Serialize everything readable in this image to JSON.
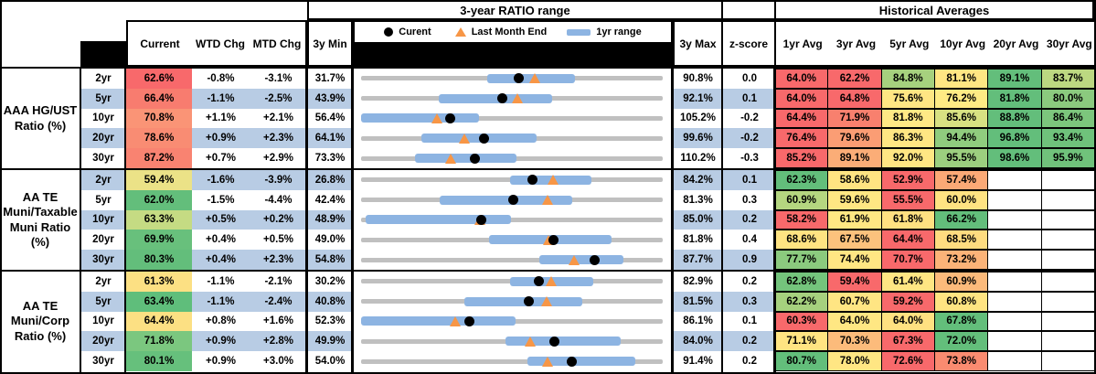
{
  "header": {
    "ratio_range_title": "3-year RATIO range",
    "historical_title": "Historical Averages",
    "legend": {
      "current": "Curent",
      "last_month_end": "Last Month End",
      "range_1yr": "1yr range"
    },
    "col_current": "Current",
    "col_wtd": "WTD Chg",
    "col_mtd": "MTD Chg",
    "col_3ymin": "3y Min",
    "col_3ymax": "3y Max",
    "col_zscore": "z-score",
    "avg_cols": [
      "1yr Avg",
      "3yr Avg",
      "5yr Avg",
      "10yr Avg",
      "20yr Avg",
      "30yr Avg"
    ]
  },
  "colors": {
    "band_blue": "#B8CCE4",
    "track_gray": "#C0C0C0",
    "bar_blue": "#8DB4E2",
    "triangle_orange": "#F79646",
    "dot_black": "#000000",
    "scale_red": "#F8696B",
    "scale_yellow": "#FFE783",
    "scale_green": "#63BE7B"
  },
  "chart_data": {
    "type": "table",
    "note": "range_chart values are percent ratios; marker positions are linear between min and max",
    "groups": [
      {
        "label_lines": [
          "AAA HG/UST",
          "Ratio (%)"
        ],
        "rows": [
          {
            "tenor": "2yr",
            "current": "62.6%",
            "current_color": "#F8696B",
            "wtd": "-0.8%",
            "mtd": "-3.1%",
            "min": "31.7%",
            "max": "90.8%",
            "z": "0.0",
            "range_chart": {
              "min": 31.7,
              "max": 90.8,
              "current": 62.6,
              "last_month_end": 65.7,
              "yr1_range": [
                56.4,
                73.6
              ]
            },
            "avgs": [
              {
                "v": "64.0%",
                "c": "#F8696B"
              },
              {
                "v": "62.2%",
                "c": "#F8696B"
              },
              {
                "v": "84.8%",
                "c": "#A6D17E"
              },
              {
                "v": "81.1%",
                "c": "#FFE683"
              },
              {
                "v": "89.1%",
                "c": "#63BE7B"
              },
              {
                "v": "83.7%",
                "c": "#BCD881"
              }
            ]
          },
          {
            "tenor": "5yr",
            "current": "66.4%",
            "current_color": "#F87C6F",
            "wtd": "-1.1%",
            "mtd": "-2.5%",
            "min": "43.9%",
            "max": "92.1%",
            "z": "0.1",
            "range_chart": {
              "min": 43.9,
              "max": 92.1,
              "current": 66.4,
              "last_month_end": 68.9,
              "yr1_range": [
                56.3,
                74.4
              ]
            },
            "avgs": [
              {
                "v": "64.0%",
                "c": "#F8696B"
              },
              {
                "v": "64.8%",
                "c": "#F8696B"
              },
              {
                "v": "75.6%",
                "c": "#FFE683"
              },
              {
                "v": "76.2%",
                "c": "#FFEB84"
              },
              {
                "v": "81.8%",
                "c": "#63BE7B"
              },
              {
                "v": "80.0%",
                "c": "#8BCA7E"
              }
            ]
          },
          {
            "tenor": "10yr",
            "current": "70.8%",
            "current_color": "#FA9476",
            "wtd": "+1.1%",
            "mtd": "+2.1%",
            "min": "56.4%",
            "max": "105.2%",
            "z": "-0.2",
            "range_chart": {
              "min": 56.4,
              "max": 105.2,
              "current": 70.8,
              "last_month_end": 68.7,
              "yr1_range": [
                56.4,
                75.5
              ]
            },
            "avgs": [
              {
                "v": "64.4%",
                "c": "#F8696B"
              },
              {
                "v": "71.9%",
                "c": "#F8806E"
              },
              {
                "v": "81.8%",
                "c": "#FFE985"
              },
              {
                "v": "85.6%",
                "c": "#D8E182"
              },
              {
                "v": "88.8%",
                "c": "#63BE7B"
              },
              {
                "v": "86.4%",
                "c": "#7CC67C"
              }
            ]
          },
          {
            "tenor": "20yr",
            "current": "78.6%",
            "current_color": "#F98C73",
            "wtd": "+0.9%",
            "mtd": "+2.3%",
            "min": "64.1%",
            "max": "99.6%",
            "z": "-0.2",
            "range_chart": {
              "min": 64.1,
              "max": 99.6,
              "current": 78.6,
              "last_month_end": 76.3,
              "yr1_range": [
                71.2,
                84.8
              ]
            },
            "avgs": [
              {
                "v": "76.4%",
                "c": "#F8696B"
              },
              {
                "v": "79.6%",
                "c": "#FB9D74"
              },
              {
                "v": "86.3%",
                "c": "#FFE683"
              },
              {
                "v": "94.4%",
                "c": "#90CC7E"
              },
              {
                "v": "96.8%",
                "c": "#63BE7B"
              },
              {
                "v": "93.4%",
                "c": "#6FC27B"
              }
            ]
          },
          {
            "tenor": "30yr",
            "current": "87.2%",
            "current_color": "#F98371",
            "wtd": "+0.7%",
            "mtd": "+2.9%",
            "min": "73.3%",
            "max": "110.2%",
            "z": "-0.3",
            "range_chart": {
              "min": 73.3,
              "max": 110.2,
              "current": 87.2,
              "last_month_end": 84.3,
              "yr1_range": [
                79.9,
                92.3
              ]
            },
            "avgs": [
              {
                "v": "85.2%",
                "c": "#F8696B"
              },
              {
                "v": "89.1%",
                "c": "#FBAD77"
              },
              {
                "v": "92.0%",
                "c": "#FFE683"
              },
              {
                "v": "95.5%",
                "c": "#9CCF7F"
              },
              {
                "v": "98.6%",
                "c": "#63BE7B"
              },
              {
                "v": "95.9%",
                "c": "#70C27B"
              }
            ]
          }
        ]
      },
      {
        "label_lines": [
          "AA TE",
          "Muni/Taxable",
          "Muni Ratio",
          "(%)"
        ],
        "rows": [
          {
            "tenor": "2yr",
            "current": "59.4%",
            "current_color": "#EBE287",
            "wtd": "-1.6%",
            "mtd": "-3.9%",
            "min": "26.8%",
            "max": "84.2%",
            "z": "0.1",
            "range_chart": {
              "min": 26.8,
              "max": 84.2,
              "current": 59.4,
              "last_month_end": 63.3,
              "yr1_range": [
                55.2,
                70.6
              ]
            },
            "avgs": [
              {
                "v": "62.3%",
                "c": "#63BE7B"
              },
              {
                "v": "58.6%",
                "c": "#FFE482"
              },
              {
                "v": "52.9%",
                "c": "#F8696B"
              },
              {
                "v": "57.4%",
                "c": "#FBA976"
              },
              {
                "v": "",
                "c": ""
              },
              {
                "v": "",
                "c": ""
              }
            ]
          },
          {
            "tenor": "5yr",
            "current": "62.0%",
            "current_color": "#63BE7B",
            "wtd": "-1.5%",
            "mtd": "-4.4%",
            "min": "42.4%",
            "max": "81.3%",
            "z": "0.3",
            "range_chart": {
              "min": 42.4,
              "max": 81.3,
              "current": 62.0,
              "last_month_end": 66.4,
              "yr1_range": [
                52.5,
                69.6
              ]
            },
            "avgs": [
              {
                "v": "60.9%",
                "c": "#B5D680"
              },
              {
                "v": "59.6%",
                "c": "#FFE783"
              },
              {
                "v": "55.5%",
                "c": "#F8696B"
              },
              {
                "v": "60.0%",
                "c": "#FFE382"
              },
              {
                "v": "",
                "c": ""
              },
              {
                "v": "",
                "c": ""
              }
            ]
          },
          {
            "tenor": "10yr",
            "current": "63.3%",
            "current_color": "#C5DB83",
            "wtd": "+0.5%",
            "mtd": "+0.2%",
            "min": "48.9%",
            "max": "85.0%",
            "z": "0.2",
            "range_chart": {
              "min": 48.9,
              "max": 85.0,
              "current": 63.3,
              "last_month_end": 63.1,
              "yr1_range": [
                49.4,
                66.8
              ]
            },
            "avgs": [
              {
                "v": "58.2%",
                "c": "#F8696B"
              },
              {
                "v": "61.9%",
                "c": "#FFE783"
              },
              {
                "v": "61.8%",
                "c": "#FFE181"
              },
              {
                "v": "66.2%",
                "c": "#63BE7B"
              },
              {
                "v": "",
                "c": ""
              },
              {
                "v": "",
                "c": ""
              }
            ]
          },
          {
            "tenor": "20yr",
            "current": "69.9%",
            "current_color": "#68C07C",
            "wtd": "+0.4%",
            "mtd": "+0.5%",
            "min": "49.0%",
            "max": "81.8%",
            "z": "0.4",
            "range_chart": {
              "min": 49.0,
              "max": 81.8,
              "current": 69.9,
              "last_month_end": 69.4,
              "yr1_range": [
                62.9,
                76.2
              ]
            },
            "avgs": [
              {
                "v": "68.6%",
                "c": "#FFE382"
              },
              {
                "v": "67.5%",
                "c": "#FCC27D"
              },
              {
                "v": "64.4%",
                "c": "#F8696B"
              },
              {
                "v": "68.5%",
                "c": "#FEDC80"
              },
              {
                "v": "",
                "c": ""
              },
              {
                "v": "",
                "c": ""
              }
            ]
          },
          {
            "tenor": "30yr",
            "current": "80.3%",
            "current_color": "#63BE7B",
            "wtd": "+0.4%",
            "mtd": "+2.3%",
            "min": "54.8%",
            "max": "87.7%",
            "z": "0.9",
            "range_chart": {
              "min": 54.8,
              "max": 87.7,
              "current": 80.3,
              "last_month_end": 78.0,
              "yr1_range": [
                74.2,
                83.4
              ]
            },
            "avgs": [
              {
                "v": "77.7%",
                "c": "#8BCA7E"
              },
              {
                "v": "74.4%",
                "c": "#FFE683"
              },
              {
                "v": "70.7%",
                "c": "#F8696B"
              },
              {
                "v": "73.2%",
                "c": "#FBB378"
              },
              {
                "v": "",
                "c": ""
              },
              {
                "v": "",
                "c": ""
              }
            ]
          }
        ]
      },
      {
        "label_lines": [
          "AA TE",
          "Muni/Corp",
          "Ratio (%)"
        ],
        "rows": [
          {
            "tenor": "2yr",
            "current": "61.3%",
            "current_color": "#FCE083",
            "wtd": "-1.1%",
            "mtd": "-2.1%",
            "min": "30.2%",
            "max": "82.9%",
            "z": "0.2",
            "range_chart": {
              "min": 30.2,
              "max": 82.9,
              "current": 61.3,
              "last_month_end": 63.4,
              "yr1_range": [
                56.3,
                70.8
              ]
            },
            "avgs": [
              {
                "v": "62.8%",
                "c": "#74C47C"
              },
              {
                "v": "59.4%",
                "c": "#F8696B"
              },
              {
                "v": "61.4%",
                "c": "#FFE683"
              },
              {
                "v": "60.9%",
                "c": "#FCBA7B"
              },
              {
                "v": "",
                "c": ""
              },
              {
                "v": "",
                "c": ""
              }
            ]
          },
          {
            "tenor": "5yr",
            "current": "63.4%",
            "current_color": "#5FBE7B",
            "wtd": "-1.1%",
            "mtd": "-2.4%",
            "min": "40.8%",
            "max": "81.5%",
            "z": "0.3",
            "range_chart": {
              "min": 40.8,
              "max": 81.5,
              "current": 63.4,
              "last_month_end": 65.8,
              "yr1_range": [
                54.7,
                70.6
              ]
            },
            "avgs": [
              {
                "v": "62.2%",
                "c": "#A6D17E"
              },
              {
                "v": "60.7%",
                "c": "#FFE583"
              },
              {
                "v": "59.2%",
                "c": "#F8696B"
              },
              {
                "v": "60.8%",
                "c": "#FFE482"
              },
              {
                "v": "",
                "c": ""
              },
              {
                "v": "",
                "c": ""
              }
            ]
          },
          {
            "tenor": "10yr",
            "current": "64.4%",
            "current_color": "#FCE083",
            "wtd": "+0.8%",
            "mtd": "+1.6%",
            "min": "52.3%",
            "max": "86.1%",
            "z": "0.1",
            "range_chart": {
              "min": 52.3,
              "max": 86.1,
              "current": 64.4,
              "last_month_end": 62.8,
              "yr1_range": [
                52.3,
                69.6
              ]
            },
            "avgs": [
              {
                "v": "60.3%",
                "c": "#F8696B"
              },
              {
                "v": "64.0%",
                "c": "#FFE783"
              },
              {
                "v": "64.0%",
                "c": "#FFE181"
              },
              {
                "v": "67.8%",
                "c": "#63BE7B"
              },
              {
                "v": "",
                "c": ""
              },
              {
                "v": "",
                "c": ""
              }
            ]
          },
          {
            "tenor": "20yr",
            "current": "71.8%",
            "current_color": "#7BC77F",
            "wtd": "+0.9%",
            "mtd": "+2.8%",
            "min": "49.9%",
            "max": "84.0%",
            "z": "0.2",
            "range_chart": {
              "min": 49.9,
              "max": 84.0,
              "current": 71.8,
              "last_month_end": 69.0,
              "yr1_range": [
                66.2,
                79.2
              ]
            },
            "avgs": [
              {
                "v": "71.1%",
                "c": "#FFE482"
              },
              {
                "v": "70.3%",
                "c": "#FCBB7B"
              },
              {
                "v": "67.3%",
                "c": "#F8696B"
              },
              {
                "v": "72.0%",
                "c": "#63BE7B"
              },
              {
                "v": "",
                "c": ""
              },
              {
                "v": "",
                "c": ""
              }
            ]
          },
          {
            "tenor": "30yr",
            "current": "80.1%",
            "current_color": "#66C07C",
            "wtd": "+0.9%",
            "mtd": "+3.0%",
            "min": "54.0%",
            "max": "91.4%",
            "z": "0.2",
            "range_chart": {
              "min": 54.0,
              "max": 91.4,
              "current": 80.1,
              "last_month_end": 77.1,
              "yr1_range": [
                74.6,
                88.0
              ]
            },
            "avgs": [
              {
                "v": "80.7%",
                "c": "#63BE7B"
              },
              {
                "v": "78.0%",
                "c": "#FFE683"
              },
              {
                "v": "72.6%",
                "c": "#F8696B"
              },
              {
                "v": "73.8%",
                "c": "#FA8B70"
              },
              {
                "v": "",
                "c": ""
              },
              {
                "v": "",
                "c": ""
              }
            ]
          }
        ]
      }
    ]
  }
}
